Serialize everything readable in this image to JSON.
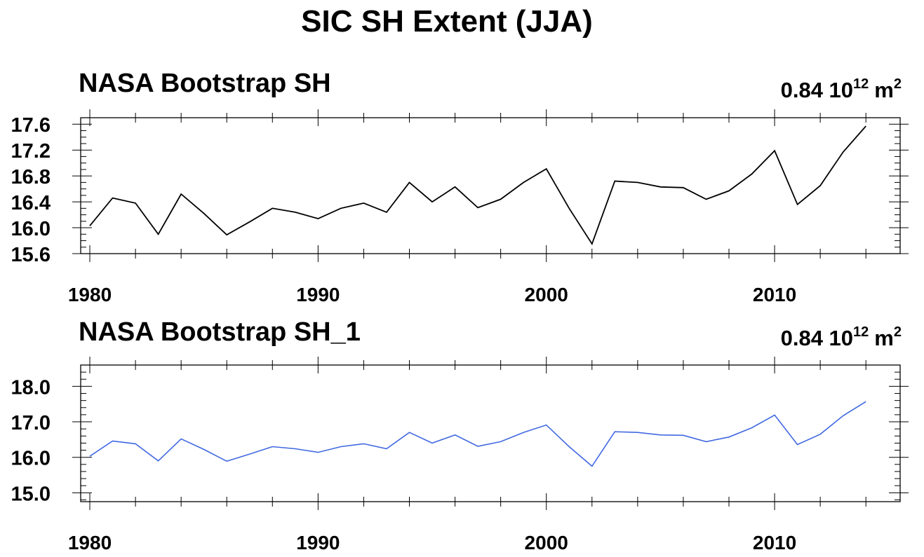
{
  "figure": {
    "title": "SIC SH Extent (JJA)"
  },
  "chart_data": [
    {
      "type": "line",
      "title": "NASA Bootstrap SH",
      "right_annotation": {
        "value": "0.84 10",
        "exponent": "12",
        "unit": "m",
        "unit_power": "2"
      },
      "xlabel": "",
      "ylabel": "",
      "xlim": [
        1979.6,
        2015.5
      ],
      "ylim": [
        15.6,
        17.7
      ],
      "x_ticks": [
        1980,
        1990,
        2000,
        2010
      ],
      "y_ticks": [
        "15.6",
        "16.0",
        "16.4",
        "16.8",
        "17.2",
        "17.6"
      ],
      "grid": false,
      "line_color": "#000000",
      "series": [
        {
          "x": [
            1980,
            1981,
            1982,
            1983,
            1984,
            1985,
            1986,
            1987,
            1988,
            1989,
            1990,
            1991,
            1992,
            1993,
            1994,
            1995,
            1996,
            1997,
            1998,
            1999,
            2000,
            2001,
            2002,
            2003,
            2004,
            2005,
            2006,
            2007,
            2008,
            2009,
            2010,
            2011,
            2012,
            2013,
            2014
          ],
          "values": [
            16.03,
            16.46,
            16.38,
            15.9,
            16.52,
            16.22,
            15.89,
            16.09,
            16.3,
            16.24,
            16.14,
            16.3,
            16.38,
            16.24,
            16.7,
            16.4,
            16.63,
            16.31,
            16.44,
            16.7,
            16.91,
            16.3,
            15.75,
            16.72,
            16.7,
            16.63,
            16.62,
            16.44,
            16.57,
            16.83,
            17.19,
            16.36,
            16.65,
            17.17,
            17.57
          ]
        }
      ]
    },
    {
      "type": "line",
      "title": "NASA Bootstrap SH_1",
      "right_annotation": {
        "value": "0.84 10",
        "exponent": "12",
        "unit": "m",
        "unit_power": "2"
      },
      "xlabel": "",
      "ylabel": "",
      "xlim": [
        1979.6,
        2015.5
      ],
      "ylim": [
        14.75,
        18.6
      ],
      "x_ticks": [
        1980,
        1990,
        2000,
        2010
      ],
      "y_ticks": [
        "15.0",
        "16.0",
        "17.0",
        "18.0"
      ],
      "grid": false,
      "line_color": "#4169e1",
      "series": [
        {
          "x": [
            1980,
            1981,
            1982,
            1983,
            1984,
            1985,
            1986,
            1987,
            1988,
            1989,
            1990,
            1991,
            1992,
            1993,
            1994,
            1995,
            1996,
            1997,
            1998,
            1999,
            2000,
            2001,
            2002,
            2003,
            2004,
            2005,
            2006,
            2007,
            2008,
            2009,
            2010,
            2011,
            2012,
            2013,
            2014
          ],
          "values": [
            16.03,
            16.46,
            16.38,
            15.9,
            16.52,
            16.22,
            15.89,
            16.09,
            16.3,
            16.24,
            16.14,
            16.3,
            16.38,
            16.24,
            16.7,
            16.4,
            16.63,
            16.31,
            16.44,
            16.7,
            16.91,
            16.3,
            15.75,
            16.72,
            16.7,
            16.63,
            16.62,
            16.44,
            16.57,
            16.83,
            17.19,
            16.36,
            16.65,
            17.17,
            17.57
          ]
        }
      ]
    }
  ]
}
